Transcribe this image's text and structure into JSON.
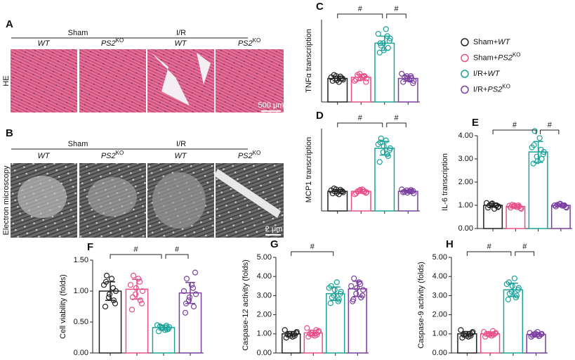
{
  "images": [
    {
      "letter": "A",
      "groups": [
        "Sham",
        "I/R"
      ],
      "subgroups": [
        {
          "text": "WT"
        },
        {
          "text": "PS2",
          "sup": "KO"
        },
        {
          "text": "WT"
        },
        {
          "text": "PS2",
          "sup": "KO"
        }
      ],
      "side_label": "HE",
      "scale": "500 μm"
    },
    {
      "letter": "B",
      "groups": [
        "Sham",
        "I/R"
      ],
      "subgroups": [
        {
          "text": "WT"
        },
        {
          "text": "PS2",
          "sup": "KO"
        },
        {
          "text": "WT"
        },
        {
          "text": "PS2",
          "sup": "KO"
        }
      ],
      "side_label": "Electron microscopy",
      "scale": "2 μm"
    }
  ],
  "legend": [
    {
      "prefix": "Sham+",
      "text": "WT",
      "color": "#222222"
    },
    {
      "prefix": "Sham+",
      "text": "PS2",
      "sup": "KO",
      "color": "#e8508a"
    },
    {
      "prefix": "I/R+",
      "text": "WT",
      "color": "#1aa39a"
    },
    {
      "prefix": "I/R+",
      "text": "PS2",
      "sup": "KO",
      "color": "#7b3fa0"
    }
  ],
  "chart_data": [
    {
      "type": "bar",
      "panel": "C",
      "ylabel": "TNFα transcription",
      "ylim": [
        0,
        3.5
      ],
      "values": [
        1.0,
        1.05,
        2.5,
        1.0
      ],
      "errors": [
        0.1,
        0.12,
        0.3,
        0.12
      ],
      "points": [
        [
          0.9,
          1.0,
          1.1,
          0.95,
          1.05,
          0.85,
          1.15,
          1.0,
          0.92,
          1.08
        ],
        [
          0.95,
          1.1,
          1.2,
          1.0,
          0.9,
          1.05,
          1.15,
          0.85,
          1.0,
          1.1
        ],
        [
          2.1,
          2.3,
          2.5,
          2.7,
          2.9,
          3.1,
          2.4,
          2.6,
          2.2,
          2.8,
          2.5
        ],
        [
          0.85,
          1.0,
          1.1,
          0.9,
          1.2,
          0.95,
          1.05,
          0.8,
          1.0,
          1.1
        ]
      ],
      "brackets": [
        {
          "label": "#",
          "groups": [
            0,
            2
          ]
        },
        {
          "label": "#",
          "groups": [
            2,
            3
          ]
        }
      ]
    },
    {
      "type": "bar",
      "panel": "D",
      "ylabel": "MCP1 transcription",
      "ylim": [
        0,
        4.2
      ],
      "values": [
        1.0,
        1.0,
        3.2,
        1.0
      ],
      "errors": [
        0.1,
        0.1,
        0.35,
        0.07
      ],
      "points": [
        [
          0.9,
          1.0,
          1.1,
          0.95,
          1.05,
          0.85,
          1.15,
          1.0,
          0.92,
          1.08
        ],
        [
          0.9,
          1.0,
          1.05,
          0.95,
          0.85,
          1.1,
          1.0,
          0.92,
          1.08,
          0.98
        ],
        [
          2.5,
          2.8,
          3.0,
          3.2,
          3.4,
          3.6,
          3.7,
          3.1,
          3.3,
          2.9,
          3.5
        ],
        [
          0.95,
          1.0,
          1.05,
          0.9,
          1.1,
          1.0,
          0.98,
          1.02,
          0.93,
          1.07
        ]
      ],
      "brackets": [
        {
          "label": "#",
          "groups": [
            0,
            2
          ]
        },
        {
          "label": "#",
          "groups": [
            2,
            3
          ]
        }
      ]
    },
    {
      "type": "bar",
      "panel": "E",
      "ylabel": "IL-6 transcription",
      "ylim": [
        0,
        4
      ],
      "yticks": [
        {
          "value": 0,
          "label": "0.00"
        },
        {
          "value": 1,
          "label": "1.00"
        },
        {
          "value": 2,
          "label": "2.00"
        },
        {
          "value": 3,
          "label": "3.00"
        },
        {
          "value": 4,
          "label": "4.00"
        }
      ],
      "values": [
        1.0,
        0.95,
        3.3,
        1.0
      ],
      "errors": [
        0.08,
        0.07,
        0.45,
        0.06
      ],
      "points": [
        [
          0.9,
          1.0,
          1.05,
          0.95,
          1.1,
          0.85,
          1.0,
          0.92,
          1.08,
          1.0
        ],
        [
          0.9,
          0.95,
          1.0,
          0.85,
          0.98,
          0.92,
          1.02,
          0.88,
          0.96,
          1.0
        ],
        [
          2.8,
          3.0,
          3.1,
          3.3,
          3.5,
          3.9,
          4.2,
          3.2,
          2.9,
          3.4,
          3.6
        ],
        [
          0.95,
          1.0,
          1.05,
          0.9,
          1.0,
          0.98,
          1.02,
          0.93,
          1.07,
          1.0
        ]
      ],
      "brackets": [
        {
          "label": "#",
          "groups": [
            0,
            2
          ]
        },
        {
          "label": "#",
          "groups": [
            2,
            3
          ]
        }
      ]
    },
    {
      "type": "bar",
      "panel": "F",
      "ylabel": "Cell viability (folds)",
      "ylim": [
        0,
        1.5
      ],
      "yticks": [
        {
          "value": 0,
          "label": "0.00"
        },
        {
          "value": 0.5,
          "label": "0.50"
        },
        {
          "value": 1,
          "label": "1.00"
        },
        {
          "value": 1.5,
          "label": "1.50"
        }
      ],
      "values": [
        1.0,
        1.03,
        0.41,
        0.97
      ],
      "errors": [
        0.15,
        0.16,
        0.04,
        0.17
      ],
      "points": [
        [
          0.75,
          0.85,
          0.9,
          1.0,
          1.1,
          1.2,
          1.25,
          0.8,
          0.95,
          1.05,
          1.15
        ],
        [
          0.7,
          0.85,
          0.95,
          1.0,
          1.1,
          1.2,
          1.25,
          0.8,
          1.05,
          1.15,
          0.9
        ],
        [
          0.35,
          0.38,
          0.4,
          0.42,
          0.45,
          0.37,
          0.43,
          0.39,
          0.41,
          0.44
        ],
        [
          0.65,
          0.75,
          0.85,
          0.95,
          1.0,
          1.1,
          1.2,
          1.3,
          0.9,
          1.05,
          0.8
        ]
      ],
      "brackets": [
        {
          "label": "#",
          "groups": [
            0,
            2
          ]
        },
        {
          "label": "#",
          "groups": [
            2,
            3
          ]
        }
      ]
    },
    {
      "type": "bar",
      "panel": "G",
      "ylabel": "Caspase-12 activity (folds)",
      "ylim": [
        0,
        5
      ],
      "yticks": [
        {
          "value": 0,
          "label": "0.00"
        },
        {
          "value": 1,
          "label": "1.00"
        },
        {
          "value": 2,
          "label": "2.00"
        },
        {
          "value": 3,
          "label": "3.00"
        },
        {
          "value": 4,
          "label": "4.00"
        },
        {
          "value": 5,
          "label": "5.00"
        }
      ],
      "values": [
        1.0,
        1.05,
        3.1,
        3.35
      ],
      "errors": [
        0.12,
        0.14,
        0.35,
        0.4
      ],
      "points": [
        [
          0.8,
          0.9,
          1.0,
          1.1,
          1.2,
          0.85,
          0.95,
          1.05,
          0.9,
          1.0
        ],
        [
          0.85,
          0.95,
          1.05,
          1.15,
          1.3,
          0.9,
          1.0,
          1.1,
          0.95,
          1.2
        ],
        [
          2.6,
          2.8,
          3.0,
          3.2,
          3.4,
          3.7,
          2.9,
          3.1,
          3.3,
          2.7,
          3.5
        ],
        [
          2.7,
          2.9,
          3.1,
          3.3,
          3.5,
          3.7,
          3.9,
          3.0,
          3.4,
          3.6,
          2.8
        ]
      ],
      "brackets": [
        {
          "label": "#",
          "groups": [
            0,
            2
          ]
        }
      ]
    },
    {
      "type": "bar",
      "panel": "H",
      "ylabel": "Caspase-9 activity (folds)",
      "ylim": [
        0,
        5
      ],
      "yticks": [
        {
          "value": 0,
          "label": "0.00"
        },
        {
          "value": 1,
          "label": "1.00"
        },
        {
          "value": 2,
          "label": "2.00"
        },
        {
          "value": 3,
          "label": "3.00"
        },
        {
          "value": 4,
          "label": "4.00"
        },
        {
          "value": 5,
          "label": "5.00"
        }
      ],
      "values": [
        1.0,
        1.0,
        3.3,
        0.97
      ],
      "errors": [
        0.12,
        0.1,
        0.35,
        0.1
      ],
      "points": [
        [
          0.8,
          0.9,
          1.0,
          1.1,
          1.2,
          0.85,
          0.95,
          1.05,
          0.9,
          1.0
        ],
        [
          0.85,
          0.95,
          1.0,
          1.05,
          1.1,
          0.9,
          1.0,
          1.02,
          0.95,
          1.15
        ],
        [
          2.8,
          3.0,
          3.2,
          3.4,
          3.6,
          3.9,
          3.1,
          3.3,
          3.5,
          2.9,
          3.7
        ],
        [
          0.85,
          0.9,
          0.95,
          1.0,
          1.05,
          1.1,
          0.92,
          0.98,
          1.02,
          0.88
        ]
      ],
      "brackets": [
        {
          "label": "#",
          "groups": [
            0,
            2
          ]
        },
        {
          "label": "#",
          "groups": [
            2,
            3
          ]
        }
      ]
    }
  ]
}
